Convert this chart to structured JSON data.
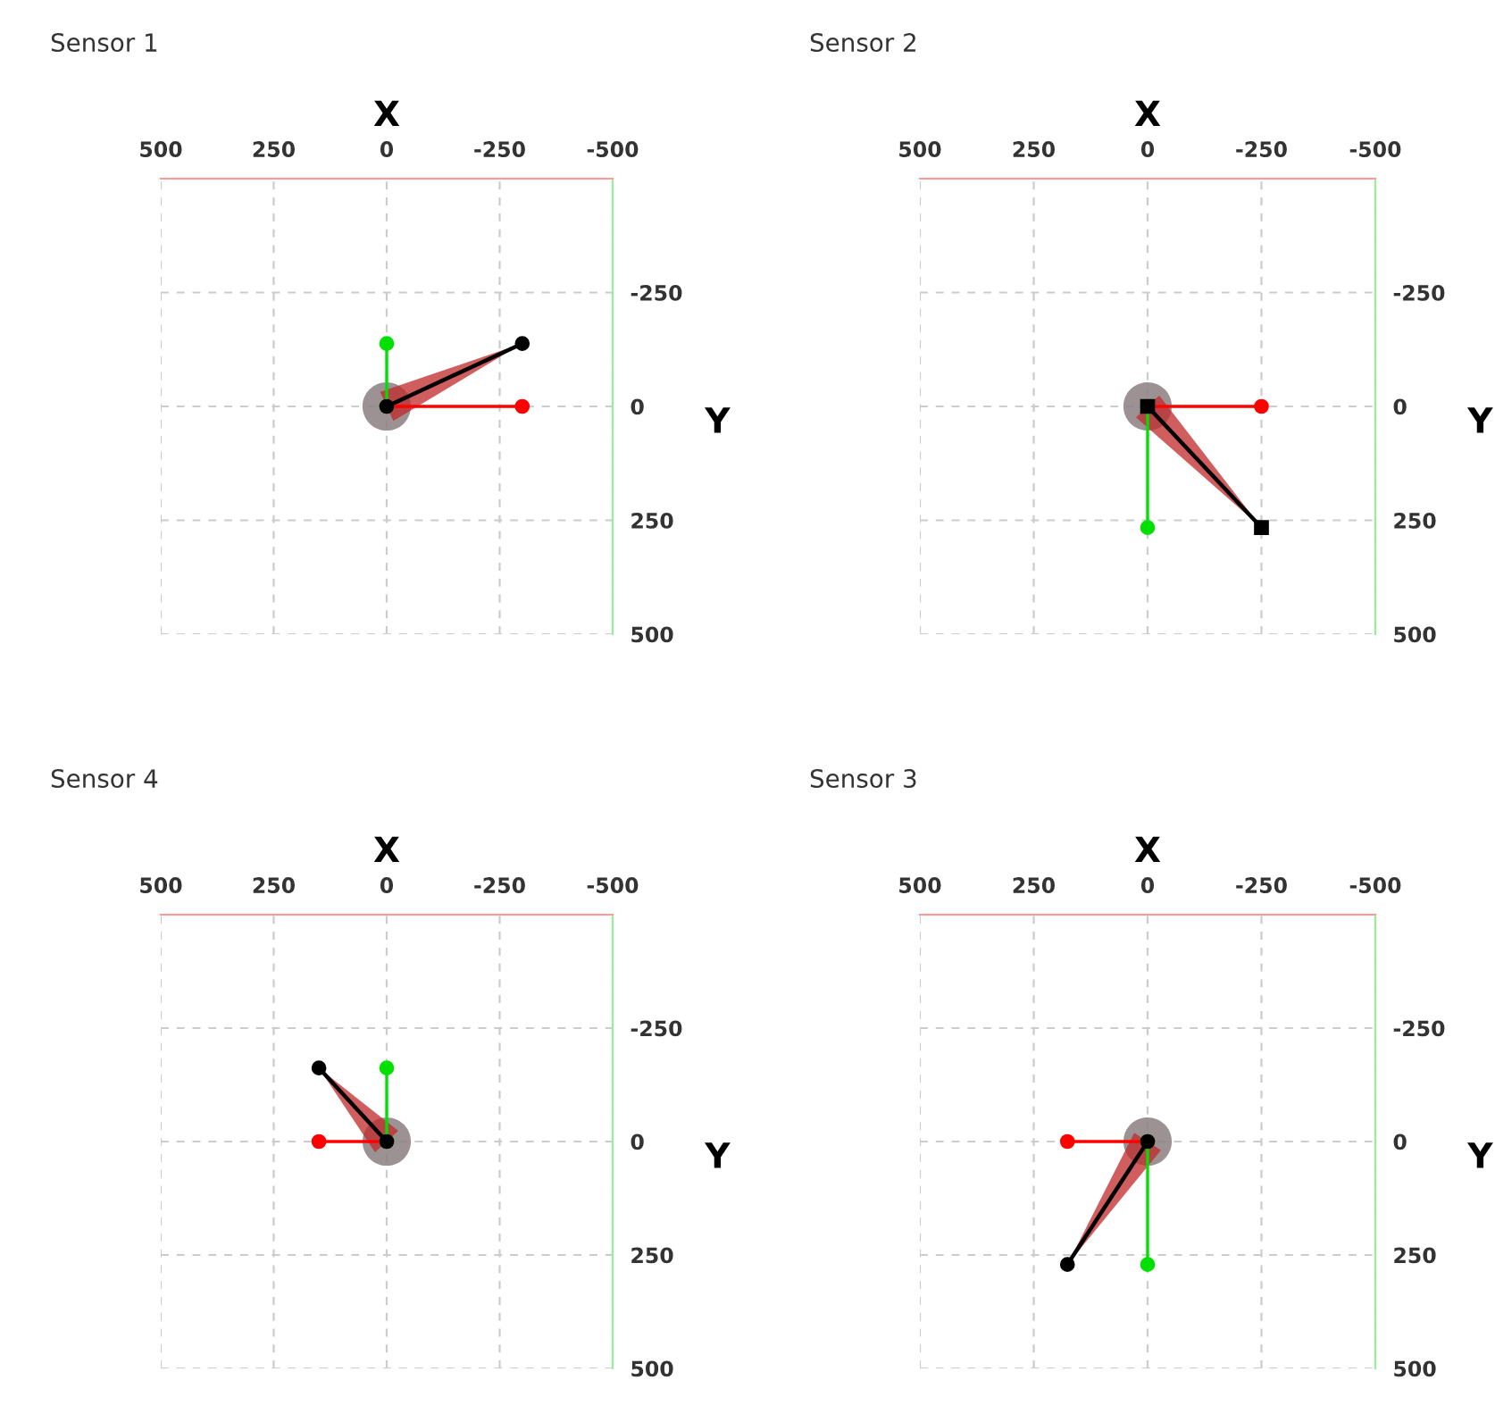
{
  "chart_data": [
    {
      "type": "line",
      "title": "Sensor 1",
      "xlabel": "X",
      "ylabel": "Y",
      "xlim": [
        500,
        -500
      ],
      "ylim": [
        500,
        -500
      ],
      "xticks": [
        500,
        250,
        0,
        -250,
        -500
      ],
      "yticks": [
        -250,
        0,
        250,
        500
      ],
      "grid": true,
      "series": [
        {
          "type": "scatter",
          "color": "#8c7f80",
          "x": [
            0
          ],
          "values": [
            0
          ]
        },
        {
          "color": "#ff0000",
          "x": [
            0,
            -300
          ],
          "values": [
            0,
            0
          ],
          "marker": "circle"
        },
        {
          "color": "#00e000",
          "x": [
            0,
            0
          ],
          "values": [
            0,
            -138
          ],
          "marker": "circle"
        },
        {
          "color": "#000000",
          "x": [
            0,
            -300
          ],
          "values": [
            0,
            -138
          ],
          "marker": "circle"
        }
      ]
    },
    {
      "type": "line",
      "title": "Sensor 2",
      "xlabel": "X",
      "ylabel": "Y",
      "xlim": [
        500,
        -500
      ],
      "ylim": [
        500,
        -500
      ],
      "xticks": [
        500,
        250,
        0,
        -250,
        -500
      ],
      "yticks": [
        -250,
        0,
        250,
        500
      ],
      "grid": true,
      "series": [
        {
          "type": "scatter",
          "color": "#8c7f80",
          "x": [
            0
          ],
          "values": [
            0
          ]
        },
        {
          "color": "#ff0000",
          "x": [
            0,
            -250
          ],
          "values": [
            0,
            0
          ],
          "marker": "circle"
        },
        {
          "color": "#00e000",
          "x": [
            0,
            0
          ],
          "values": [
            0,
            266
          ],
          "marker": "circle"
        },
        {
          "color": "#000000",
          "x": [
            0,
            -250
          ],
          "values": [
            0,
            266
          ],
          "marker": "square"
        }
      ]
    },
    {
      "type": "line",
      "title": "Sensor 4",
      "xlabel": "X",
      "ylabel": "Y",
      "xlim": [
        500,
        -500
      ],
      "ylim": [
        500,
        -500
      ],
      "xticks": [
        500,
        250,
        0,
        -250,
        -500
      ],
      "yticks": [
        -250,
        0,
        250,
        500
      ],
      "grid": true,
      "series": [
        {
          "type": "scatter",
          "color": "#8c7f80",
          "x": [
            0
          ],
          "values": [
            0
          ]
        },
        {
          "color": "#ff0000",
          "x": [
            0,
            150
          ],
          "values": [
            0,
            0
          ],
          "marker": "circle"
        },
        {
          "color": "#00e000",
          "x": [
            0,
            0
          ],
          "values": [
            0,
            -162
          ],
          "marker": "circle"
        },
        {
          "color": "#000000",
          "x": [
            0,
            150
          ],
          "values": [
            0,
            -162
          ],
          "marker": "circle"
        }
      ]
    },
    {
      "type": "line",
      "title": "Sensor 3",
      "xlabel": "X",
      "ylabel": "Y",
      "xlim": [
        500,
        -500
      ],
      "ylim": [
        500,
        -500
      ],
      "xticks": [
        500,
        250,
        0,
        -250,
        -500
      ],
      "yticks": [
        -250,
        0,
        250,
        500
      ],
      "grid": true,
      "series": [
        {
          "type": "scatter",
          "color": "#8c7f80",
          "x": [
            0
          ],
          "values": [
            0
          ]
        },
        {
          "color": "#ff0000",
          "x": [
            0,
            176
          ],
          "values": [
            0,
            0
          ],
          "marker": "circle"
        },
        {
          "color": "#00e000",
          "x": [
            0,
            0
          ],
          "values": [
            0,
            271
          ],
          "marker": "circle"
        },
        {
          "color": "#000000",
          "x": [
            0,
            176
          ],
          "values": [
            0,
            271
          ],
          "marker": "circle"
        }
      ]
    }
  ]
}
